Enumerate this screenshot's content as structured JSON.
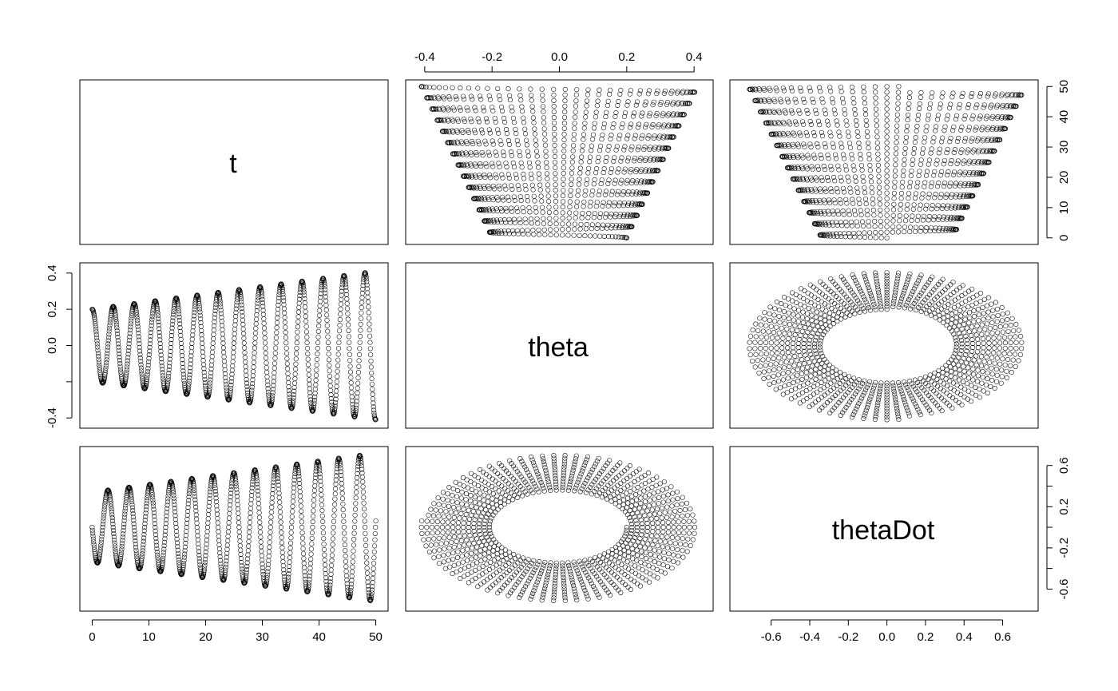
{
  "chart_data": {
    "type": "scatter",
    "kind": "pairs",
    "variables": [
      "t",
      "theta",
      "thetaDot"
    ],
    "diagonal_labels": [
      "t",
      "theta",
      "thetaDot"
    ],
    "ranges": {
      "t": [
        0,
        50
      ],
      "theta": [
        -0.42,
        0.42
      ],
      "thetaDot": [
        -0.75,
        0.72
      ]
    },
    "axes": {
      "top": {
        "column": "theta",
        "ticks": [
          -0.4,
          -0.2,
          0.0,
          0.2,
          0.4
        ],
        "tick_labels": [
          "-0.4",
          "-0.2",
          "0.0",
          "0.2",
          "0.4"
        ]
      },
      "right_row0": {
        "row": "t",
        "ticks": [
          0,
          10,
          20,
          30,
          40,
          50
        ],
        "tick_labels": [
          "0",
          "10",
          "20",
          "30",
          "40",
          "50"
        ]
      },
      "left_row1": {
        "row": "theta",
        "ticks": [
          -0.4,
          -0.2,
          0.0,
          0.2,
          0.4
        ],
        "tick_labels": [
          "-0.4",
          "",
          "0.0",
          "0.2",
          "0.4"
        ]
      },
      "right_row2": {
        "row": "thetaDot",
        "ticks": [
          -0.6,
          -0.4,
          -0.2,
          0.0,
          0.2,
          0.4,
          0.6
        ],
        "tick_labels": [
          "-0.6",
          "",
          "-0.2",
          "",
          "0.2",
          "",
          "0.6"
        ]
      },
      "bottom_col0": {
        "column": "t",
        "ticks": [
          0,
          10,
          20,
          30,
          40,
          50
        ],
        "tick_labels": [
          "0",
          "10",
          "20",
          "30",
          "40",
          "50"
        ]
      },
      "bottom_col2": {
        "column": "thetaDot",
        "ticks": [
          -0.6,
          -0.4,
          -0.2,
          0.0,
          0.2,
          0.4,
          0.6
        ],
        "tick_labels": [
          "-0.6",
          "-0.4",
          "-0.2",
          "0.0",
          "0.2",
          "0.4",
          "0.6"
        ]
      }
    },
    "series": {
      "t": {
        "start": 0,
        "end": 50,
        "step": 0.05
      },
      "theta": {
        "initial_amplitude": 0.2,
        "final_amplitude": 0.41,
        "period": 3.7,
        "phase": 0.0
      },
      "thetaDot": {
        "initial_amplitude": 0.34,
        "final_amplitude": 0.72,
        "period": 3.7
      }
    },
    "grid": false,
    "legend": "none",
    "marker": "open-circle",
    "color": "#000000"
  }
}
